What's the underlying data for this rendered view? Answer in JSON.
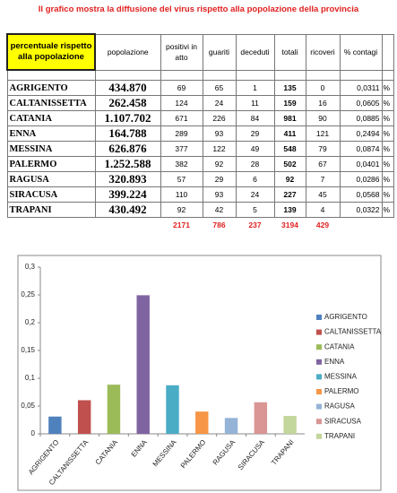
{
  "title": "Il grafico mostra la diffusione del virus rispetto alla popolazione della provincia",
  "table": {
    "header": [
      "percentuale rispetto alla popolazione",
      "popolazione",
      "positivi in atto",
      "guariti",
      "deceduti",
      "totali",
      "ricoveri",
      "% contagi"
    ],
    "rows": [
      [
        "AGRIGENTO",
        "434.870",
        "69",
        "65",
        "1",
        "135",
        "0",
        "0,0311",
        "%"
      ],
      [
        "CALTANISSETTA",
        "262.458",
        "124",
        "24",
        "11",
        "159",
        "16",
        "0,0605",
        "%"
      ],
      [
        "CATANIA",
        "1.107.702",
        "671",
        "226",
        "84",
        "981",
        "90",
        "0,0885",
        "%"
      ],
      [
        "ENNA",
        "164.788",
        "289",
        "93",
        "29",
        "411",
        "121",
        "0,2494",
        "%"
      ],
      [
        "MESSINA",
        "626.876",
        "377",
        "122",
        "49",
        "548",
        "79",
        "0,0874",
        "%"
      ],
      [
        "PALERMO",
        "1.252.588",
        "382",
        "92",
        "28",
        "502",
        "67",
        "0,0401",
        "%"
      ],
      [
        "RAGUSA",
        "320.893",
        "57",
        "29",
        "6",
        "92",
        "7",
        "0,0286",
        "%"
      ],
      [
        "SIRACUSA",
        "399.224",
        "110",
        "93",
        "24",
        "227",
        "45",
        "0,0568",
        "%"
      ],
      [
        "TRAPANI",
        "430.492",
        "92",
        "42",
        "5",
        "139",
        "4",
        "0,0322",
        "%"
      ]
    ],
    "totals": [
      "2171",
      "786",
      "237",
      "3194",
      "429"
    ]
  },
  "chart_data": {
    "type": "bar",
    "categories": [
      "AGRIGENTO",
      "CALTANISSETTA",
      "CATANIA",
      "ENNA",
      "MESSINA",
      "PALERMO",
      "RAGUSA",
      "SIRACUSA",
      "TRAPANI"
    ],
    "values": [
      0.0311,
      0.0605,
      0.0885,
      0.2494,
      0.0874,
      0.0401,
      0.0286,
      0.0568,
      0.0322
    ],
    "colors": [
      "#4f81bd",
      "#c0504d",
      "#9bbb59",
      "#8064a2",
      "#4bacc6",
      "#f79646",
      "#95b3d7",
      "#d99694",
      "#c3d69b"
    ],
    "ylim": [
      0,
      0.3
    ],
    "yticks": [
      0,
      {
        "value": 0.05,
        "label": "0,05"
      },
      {
        "value": 0.1,
        "label": "0,1"
      },
      {
        "value": 0.15,
        "label": "0,15"
      },
      {
        "value": 0.2,
        "label": "0,2"
      },
      {
        "value": 0.25,
        "label": "0,25"
      },
      {
        "value": 0.3,
        "label": "0,3"
      }
    ],
    "grid": false,
    "legend": "right"
  }
}
